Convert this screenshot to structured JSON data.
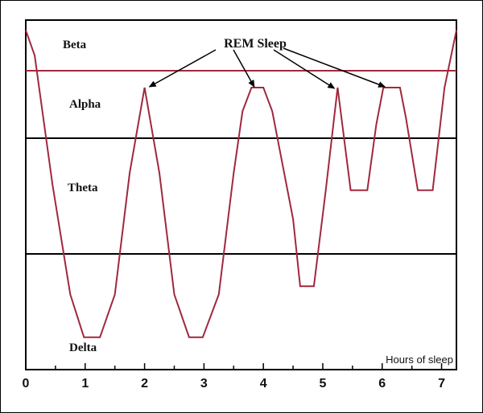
{
  "chart_data": {
    "type": "line",
    "xlabel": "Hours of sleep",
    "xlim": [
      0,
      7.25
    ],
    "x_ticks": [
      "0",
      "1",
      "2",
      "3",
      "4",
      "5",
      "6",
      "7"
    ],
    "bands": [
      {
        "label": "Beta",
        "range": [
          3,
          4
        ]
      },
      {
        "label": "Alpha",
        "range": [
          2,
          3
        ]
      },
      {
        "label": "Theta",
        "range": [
          1,
          2
        ]
      },
      {
        "label": "Delta",
        "range": [
          0,
          1
        ]
      }
    ],
    "annotation": {
      "text": "REM Sleep",
      "arrow_targets_x": [
        2.0,
        3.9,
        5.25,
        6.1
      ]
    },
    "series": [
      {
        "color": "#a0283c",
        "x": [
          0,
          0.15,
          0.45,
          0.75,
          0.98,
          1.25,
          1.5,
          1.75,
          2.0,
          2.25,
          2.5,
          2.75,
          2.98,
          3.25,
          3.5,
          3.65,
          3.8,
          4.0,
          4.15,
          4.35,
          4.5,
          4.62,
          4.85,
          5.05,
          5.25,
          5.47,
          5.75,
          5.9,
          6.02,
          6.3,
          6.4,
          6.6,
          6.85,
          7.05,
          7.25
        ],
        "y": [
          3.8,
          3.3,
          1.6,
          0.65,
          0.28,
          0.28,
          0.65,
          1.7,
          2.75,
          1.7,
          0.65,
          0.28,
          0.28,
          0.65,
          1.7,
          2.4,
          2.75,
          2.75,
          2.4,
          1.7,
          1.3,
          0.72,
          0.72,
          1.55,
          2.75,
          1.55,
          1.55,
          2.2,
          2.75,
          2.75,
          2.3,
          1.55,
          1.55,
          2.75,
          3.8
        ]
      }
    ]
  }
}
